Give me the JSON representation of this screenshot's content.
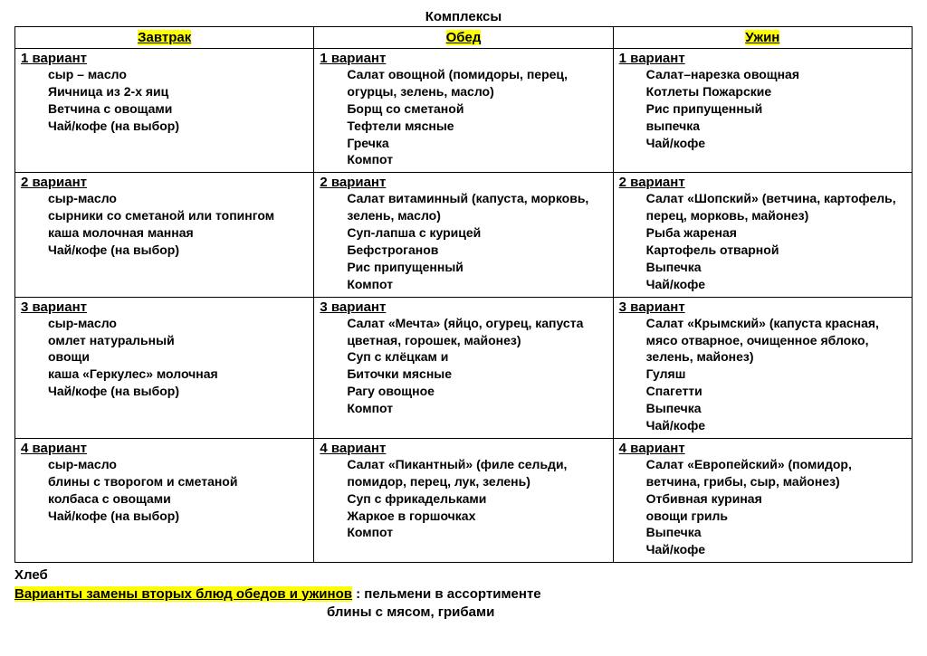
{
  "title": "Комплексы",
  "highlight_color": "#ffff00",
  "columns": [
    "Завтрак",
    "Обед",
    "Ужин"
  ],
  "rows": [
    {
      "breakfast": {
        "variant": "1 вариант",
        "items": [
          "сыр – масло",
          "Яичница из 2-х яиц",
          "Ветчина с овощами",
          "Чай/кофе (на выбор)"
        ]
      },
      "lunch": {
        "variant": "1 вариант",
        "items": [
          "Салат овощной (помидоры, перец, огурцы, зелень, масло)",
          "Борщ со сметаной",
          "Тефтели мясные",
          "Гречка",
          "Компот"
        ]
      },
      "dinner": {
        "variant": "1 вариант",
        "items": [
          "Салат–нарезка овощная",
          "Котлеты Пожарские",
          "Рис припущенный",
          "выпечка",
          "Чай/кофе"
        ]
      }
    },
    {
      "breakfast": {
        "variant": "2 вариант",
        "items": [
          "сыр-масло",
          "сырники со сметаной или топингом",
          "каша молочная манная",
          "Чай/кофе (на выбор)"
        ]
      },
      "lunch": {
        "variant": "2 вариант",
        "items": [
          "Салат витаминный (капуста, морковь, зелень, масло)",
          "Суп-лапша с курицей",
          "Бефстроганов",
          "Рис припущенный",
          "Компот"
        ]
      },
      "dinner": {
        "variant": "2 вариант",
        "items": [
          "Салат «Шопский» (ветчина, картофель, перец, морковь, майонез)",
          "Рыба жареная",
          "Картофель отварной",
          "Выпечка",
          "Чай/кофе"
        ]
      }
    },
    {
      "breakfast": {
        "variant": "3 вариант",
        "items": [
          "сыр-масло",
          "омлет натуральный",
          "овощи",
          "каша «Геркулес» молочная",
          "Чай/кофе (на выбор)"
        ]
      },
      "lunch": {
        "variant": "3 вариант",
        "items": [
          "Салат «Мечта» (яйцо, огурец, капуста цветная, горошек, майонез)",
          "Суп с клёцкам и",
          "Биточки мясные",
          "Рагу овощное",
          "Компот"
        ]
      },
      "dinner": {
        "variant": "3 вариант",
        "items": [
          "Салат «Крымский» (капуста красная, мясо отварное, очищенное яблоко, зелень, майонез)",
          "Гуляш",
          "Спагетти",
          "Выпечка",
          "Чай/кофе"
        ]
      }
    },
    {
      "breakfast": {
        "variant": "4 вариант",
        "items": [
          "сыр-масло",
          "блины с творогом и сметаной",
          "колбаса с овощами",
          "Чай/кофе (на выбор)"
        ]
      },
      "lunch": {
        "variant": "4 вариант",
        "items": [
          "Салат «Пикантный» (филе сельди, помидор, перец, лук, зелень)",
          "Суп с фрикадельками",
          "Жаркое в горшочках",
          "Компот"
        ]
      },
      "dinner": {
        "variant": "4 вариант",
        "items": [
          "Салат «Европейский» (помидор, ветчина, грибы, сыр, майонез)",
          "Отбивная куриная",
          "овощи гриль",
          "Выпечка",
          "Чай/кофе"
        ]
      }
    }
  ],
  "footer": {
    "bread": "Хлеб",
    "subst_highlight": "Варианты замены вторых блюд  обедов и ужинов",
    "subst_tail": " : пельмени в ассортименте",
    "subst_line2": "блины с мясом, грибами"
  }
}
